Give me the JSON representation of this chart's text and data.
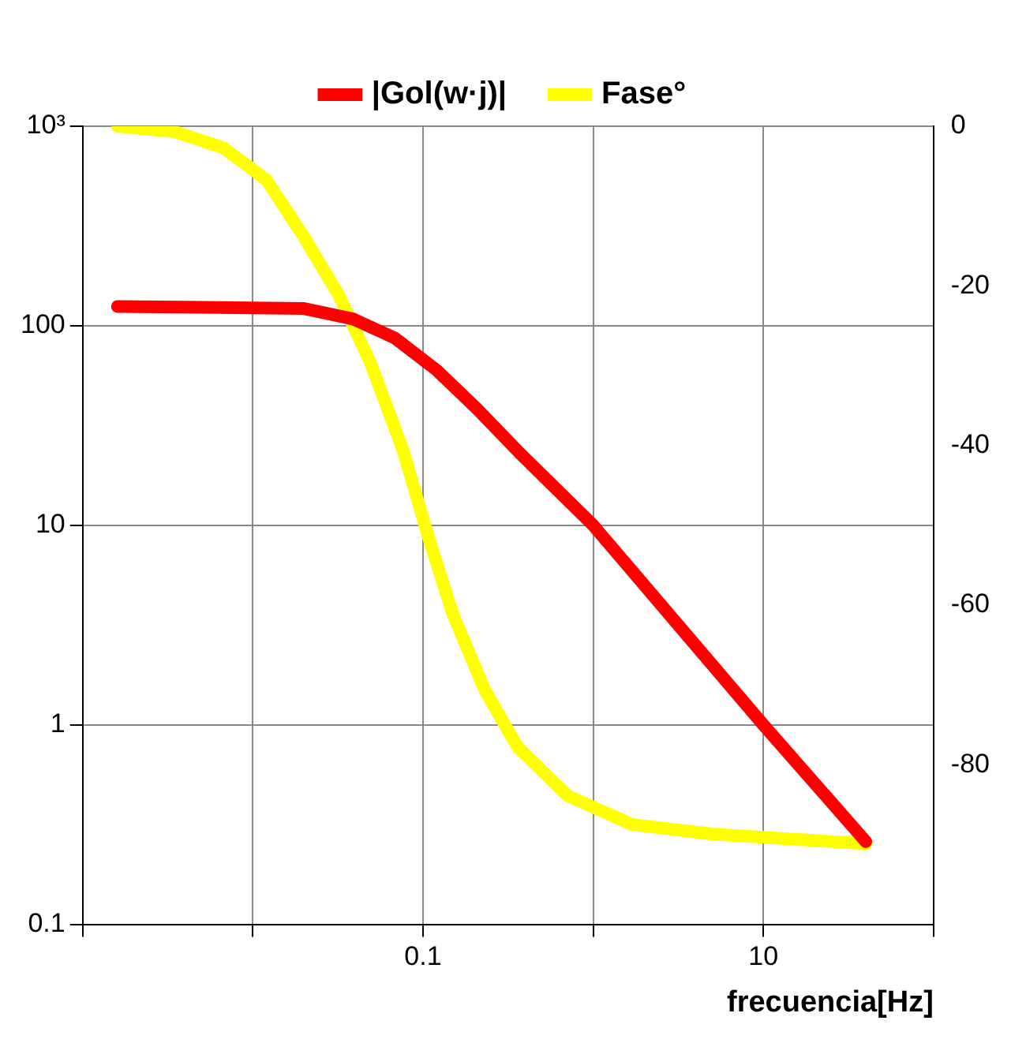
{
  "chart_data": {
    "type": "line",
    "xlabel": "frecuencia[Hz]",
    "log": "xy",
    "grid": true,
    "legend": "top",
    "marker": "none",
    "line_style": "solid",
    "xlim": [
      0.001,
      100
    ],
    "xticks": [
      {
        "value": 0.001,
        "label": null
      },
      {
        "value": 0.01,
        "label": null
      },
      0.1,
      {
        "value": 1,
        "label": null
      },
      10,
      {
        "value": 100,
        "label": null
      }
    ],
    "ylim": [
      0.1,
      1000
    ],
    "yticks": [
      0.1,
      1,
      10,
      100,
      {
        "value": 1000,
        "label": "10³"
      }
    ],
    "y2lim": [
      -100,
      0
    ],
    "y2ticks": [
      -80,
      -60,
      -40,
      -20,
      0
    ],
    "series": [
      {
        "name": "|Gol(w·j)|",
        "color": "#ff0000",
        "x": [
          0.0016,
          0.02,
          0.039,
          0.068,
          0.12,
          0.21,
          0.37,
          1,
          10,
          40
        ],
        "values": [
          125,
          122,
          108,
          87,
          60,
          38,
          23,
          10,
          1,
          0.26
        ]
      },
      {
        "name": "Fase°",
        "color": "#ffff00",
        "axis": "y2",
        "x": [
          0.0016,
          0.0035,
          0.0067,
          0.012,
          0.02,
          0.032,
          0.049,
          0.076,
          0.107,
          0.149,
          0.23,
          0.36,
          0.71,
          1.7,
          5.1,
          40
        ],
        "values": [
          0,
          -0.7,
          -2.7,
          -6.7,
          -13.9,
          -21.2,
          -29.6,
          -40.5,
          -51.3,
          -61,
          -70.6,
          -77.8,
          -83.9,
          -87.5,
          -88.7,
          -89.9
        ]
      }
    ]
  }
}
